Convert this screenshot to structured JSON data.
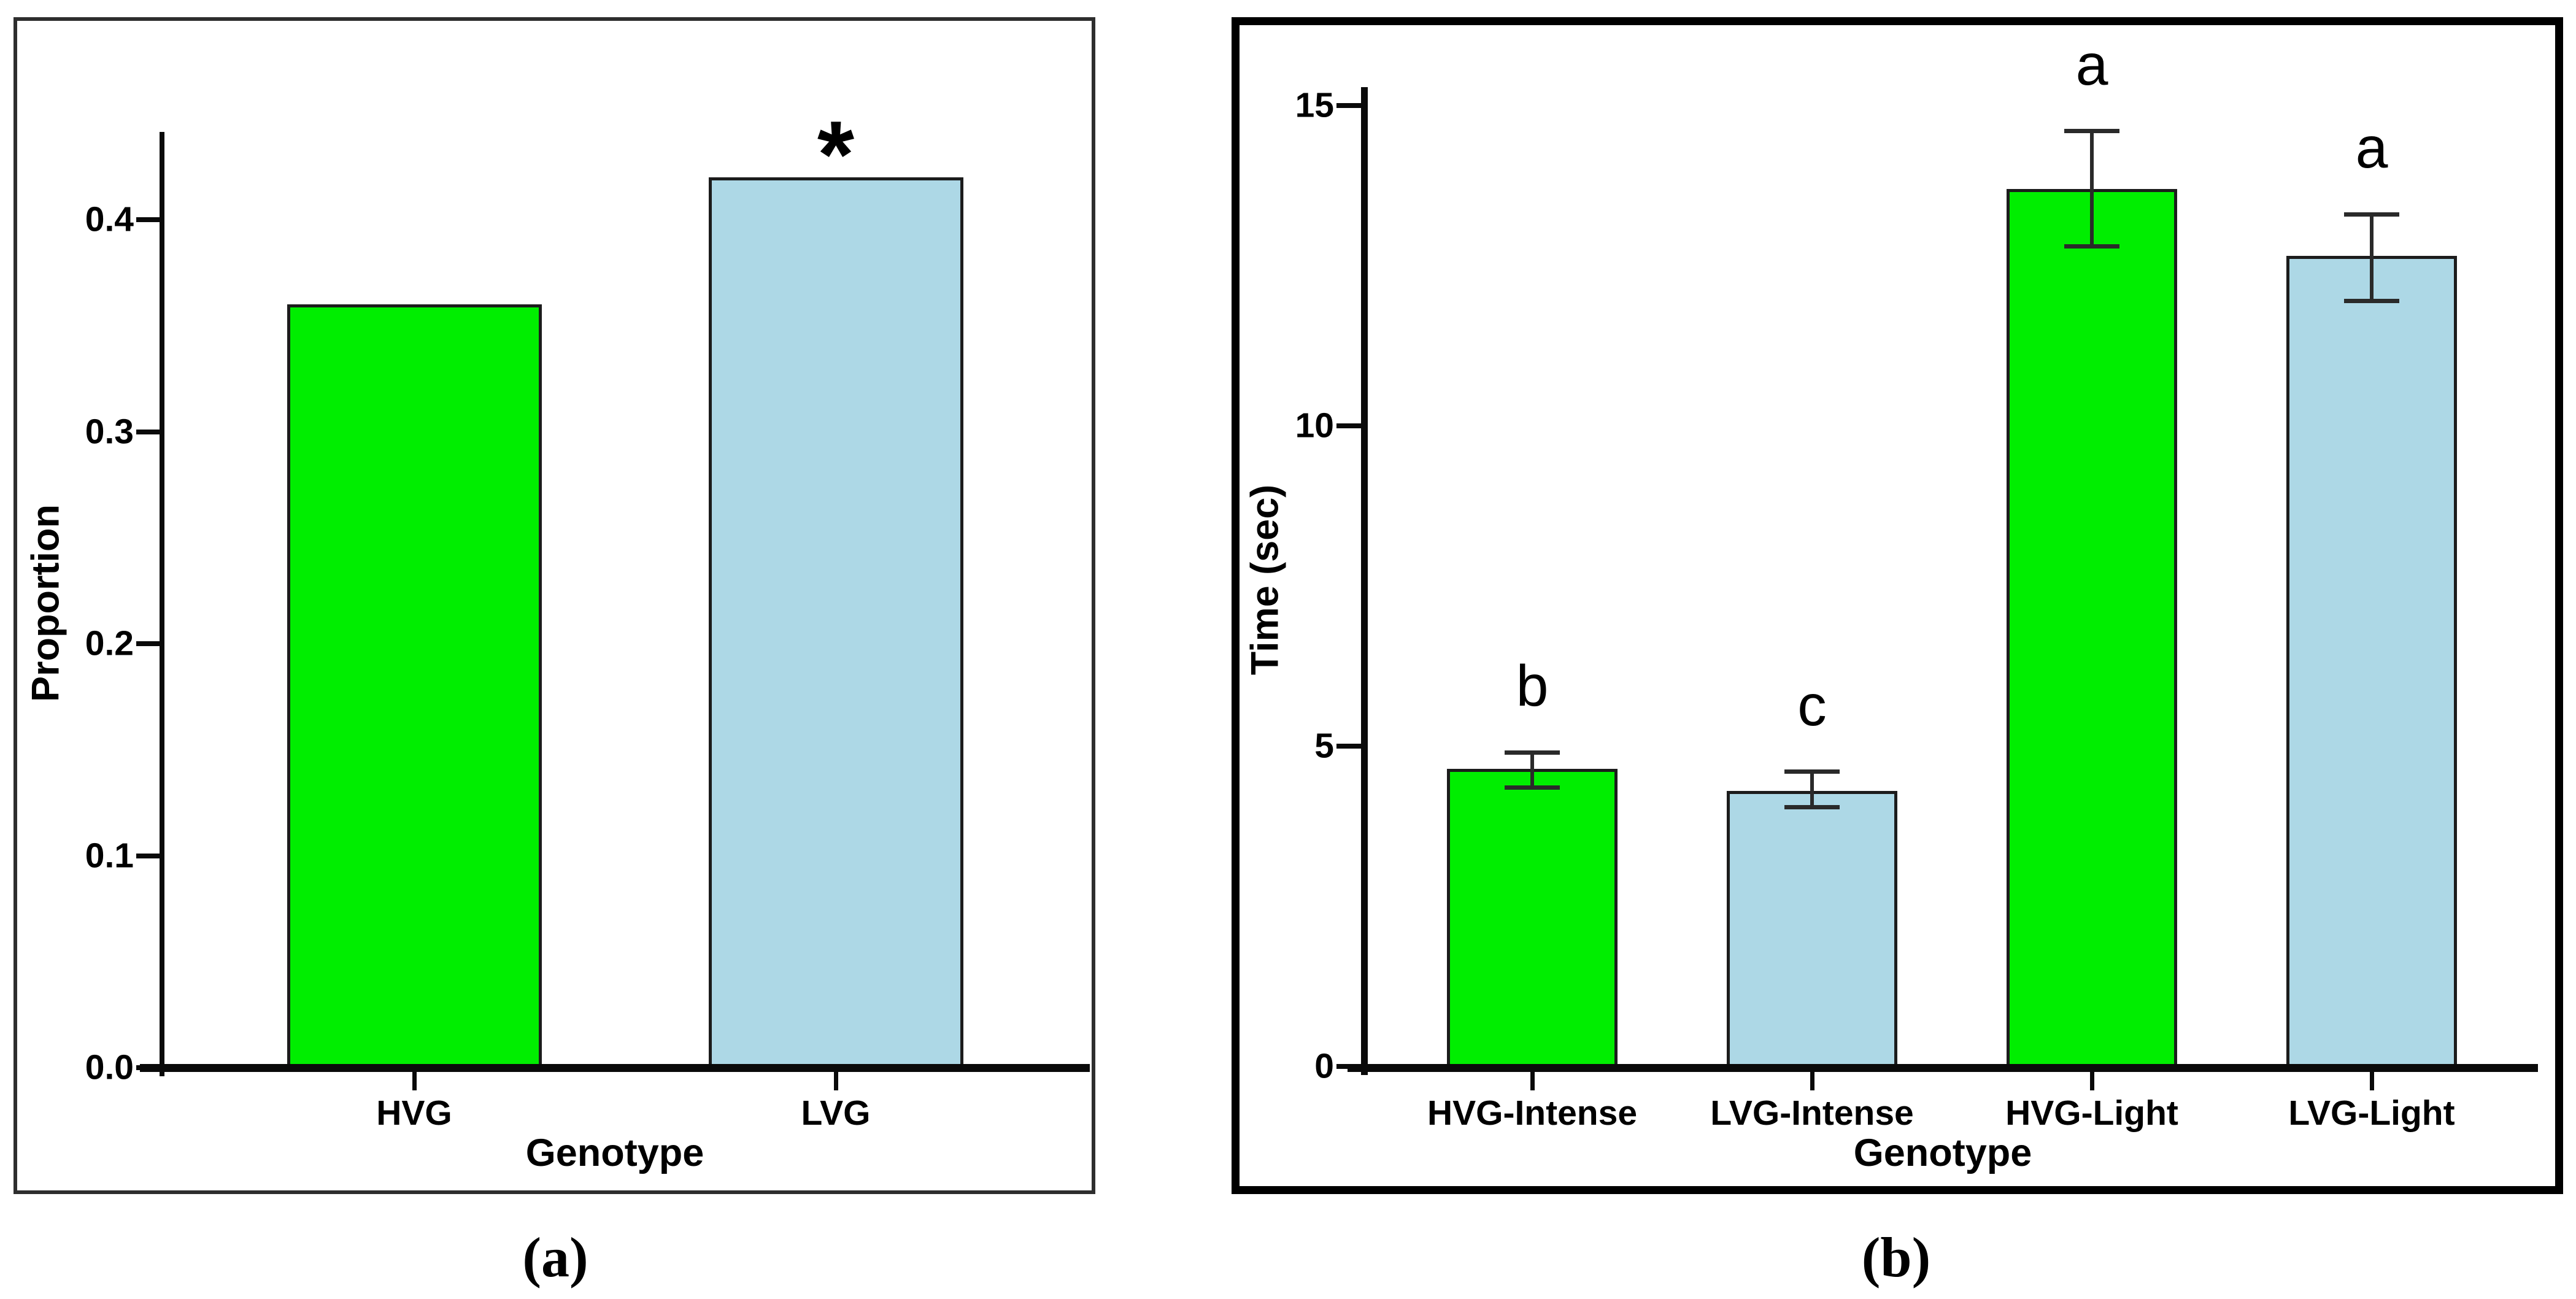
{
  "figure": {
    "description": "Two-panel bar chart figure",
    "colors": {
      "green_bar": "#00EE00",
      "blue_bar": "#ADD8E6",
      "bar_outline": "#1C1C1C",
      "panel_a_border": "#2E2E2E",
      "panel_b_border": "#000000",
      "axis": "#0A0A0A",
      "text": "#000000"
    }
  },
  "chart_data": [
    {
      "type": "bar",
      "panel": "a",
      "caption": "(a)",
      "xlabel": "Genotype",
      "ylabel": "Proportion",
      "categories": [
        "HVG",
        "LVG"
      ],
      "values": [
        0.36,
        0.42
      ],
      "bar_colors": [
        "#00EE00",
        "#ADD8E6"
      ],
      "annotations": [
        {
          "category_index": 1,
          "text": "*"
        }
      ],
      "yticks": [
        0.0,
        0.1,
        0.2,
        0.3,
        0.4
      ],
      "ytick_labels": [
        "0.0",
        "0.1",
        "0.2",
        "0.3",
        "0.4"
      ],
      "ylim": [
        0,
        0.44
      ],
      "grid": "off",
      "legend": "none"
    },
    {
      "type": "bar",
      "panel": "b",
      "caption": "(b)",
      "xlabel": "Genotype",
      "ylabel": "Time (sec)",
      "categories": [
        "HVG-Intense",
        "LVG-Intense",
        "HVG-Light",
        "LVG-Light"
      ],
      "values": [
        4.65,
        4.3,
        13.7,
        12.65
      ],
      "errors_high": [
        4.9,
        4.6,
        14.6,
        13.3
      ],
      "errors_low": [
        4.35,
        4.05,
        12.8,
        11.95
      ],
      "bar_colors": [
        "#00EE00",
        "#ADD8E6",
        "#00EE00",
        "#ADD8E6"
      ],
      "sig_letters": [
        "b",
        "c",
        "a",
        "a"
      ],
      "yticks": [
        0,
        5,
        10,
        15
      ],
      "ytick_labels": [
        "0",
        "5",
        "10",
        "15"
      ],
      "ylim": [
        0,
        15.3
      ],
      "grid": "off",
      "legend": "none"
    }
  ]
}
